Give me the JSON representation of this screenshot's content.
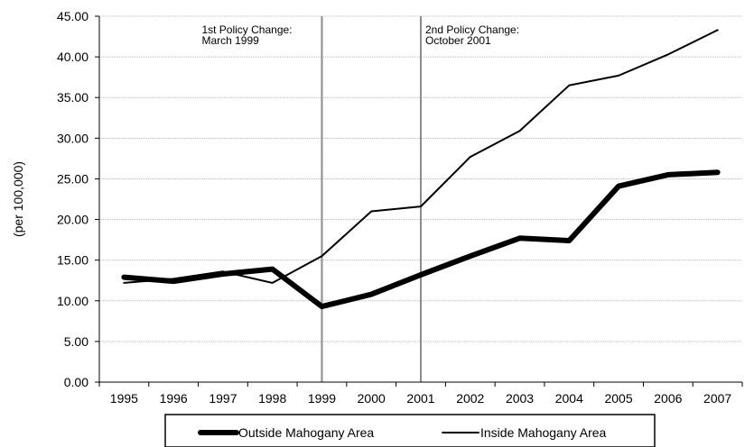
{
  "chart_data": {
    "type": "line",
    "x": [
      "1995",
      "1996",
      "1997",
      "1998",
      "1999",
      "2000",
      "2001",
      "2002",
      "2003",
      "2004",
      "2005",
      "2006",
      "2007"
    ],
    "y_ticks": [
      "0.00",
      "5.00",
      "10.00",
      "15.00",
      "20.00",
      "25.00",
      "30.00",
      "35.00",
      "40.00",
      "45.00"
    ],
    "ylim": [
      0,
      45
    ],
    "ylabel": "(per 100,000)",
    "xlabel": "",
    "title": "",
    "grid": "horizontal",
    "legend_position": "bottom",
    "series": [
      {
        "name": "Outside Mahogany Area",
        "color": "#000000",
        "style": "thick",
        "values": [
          12.9,
          12.4,
          13.3,
          13.9,
          9.3,
          10.8,
          13.2,
          15.5,
          17.7,
          17.4,
          24.1,
          25.5,
          25.8
        ]
      },
      {
        "name": "Inside Mahogany Area",
        "color": "#000000",
        "style": "thin",
        "values": [
          12.2,
          12.7,
          13.6,
          12.2,
          15.5,
          21.0,
          21.6,
          27.7,
          30.9,
          36.5,
          37.7,
          40.3,
          43.3
        ]
      }
    ],
    "annotations": [
      {
        "at": "1999",
        "lines": [
          "1st Policy Change:",
          "March 1999"
        ]
      },
      {
        "at": "2001",
        "lines": [
          "2nd Policy Change:",
          "October 2001"
        ]
      }
    ]
  }
}
